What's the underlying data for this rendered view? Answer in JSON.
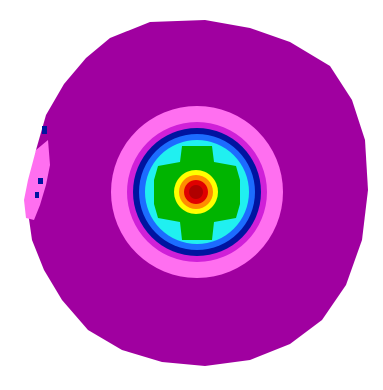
{
  "image": {
    "background": "#ffffff",
    "levels": [
      {
        "name": "outer-region",
        "color": "#a000a0"
      },
      {
        "name": "pink-ring",
        "color": "#ff6ff0"
      },
      {
        "name": "magenta-ring",
        "color": "#d020d8"
      },
      {
        "name": "navy-ring",
        "color": "#0014a0"
      },
      {
        "name": "blue-ring",
        "color": "#1c6cff"
      },
      {
        "name": "cyan-disc",
        "color": "#20f0f0"
      },
      {
        "name": "green-cross",
        "color": "#00b400"
      },
      {
        "name": "yellow-ring",
        "color": "#ffff00"
      },
      {
        "name": "orange-ring",
        "color": "#ff8c00"
      },
      {
        "name": "red-core",
        "color": "#e00000"
      },
      {
        "name": "dark-red-core",
        "color": "#b00000"
      }
    ]
  }
}
